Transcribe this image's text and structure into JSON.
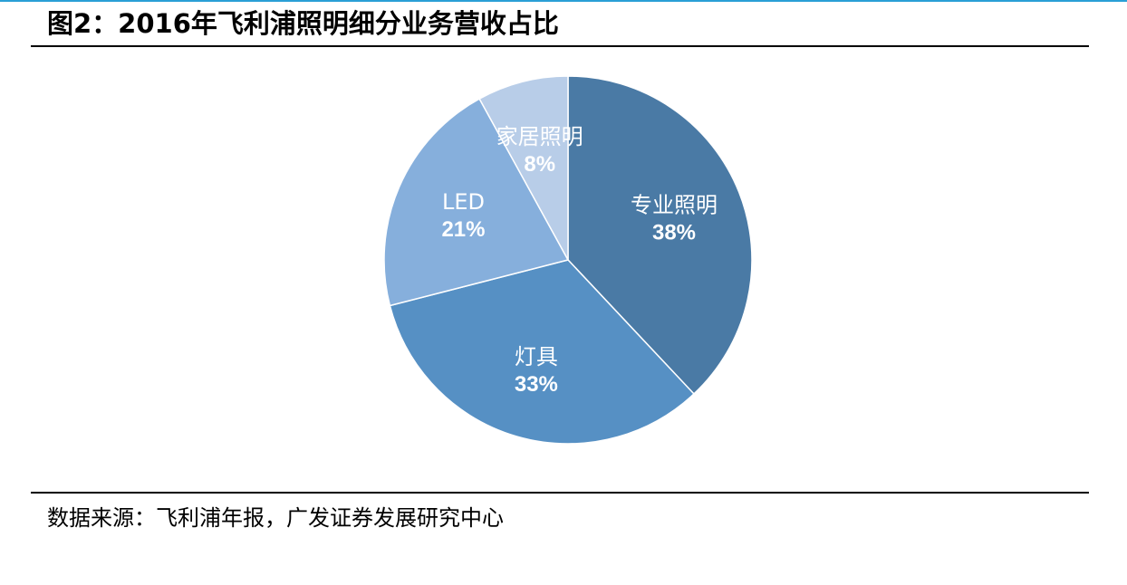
{
  "figure": {
    "title": "图2：2016年飞利浦照明细分业务营收占比",
    "source": "数据来源：飞利浦年报，广发证券发展研究中心"
  },
  "chart_data": {
    "type": "pie",
    "title": "图2：2016年飞利浦照明细分业务营收占比",
    "start": "12 o'clock, clockwise",
    "legend": "none (labels inside slices)",
    "slices": [
      {
        "label": "专业照明",
        "value": 38,
        "display": "38%",
        "color": "#4a7aa5"
      },
      {
        "label": "灯具",
        "value": 33,
        "display": "33%",
        "color": "#5690c4"
      },
      {
        "label": "LED",
        "value": 21,
        "display": "21%",
        "color": "#86afdc"
      },
      {
        "label": "家居照明",
        "value": 8,
        "display": "8%",
        "color": "#b8cde8"
      }
    ]
  }
}
